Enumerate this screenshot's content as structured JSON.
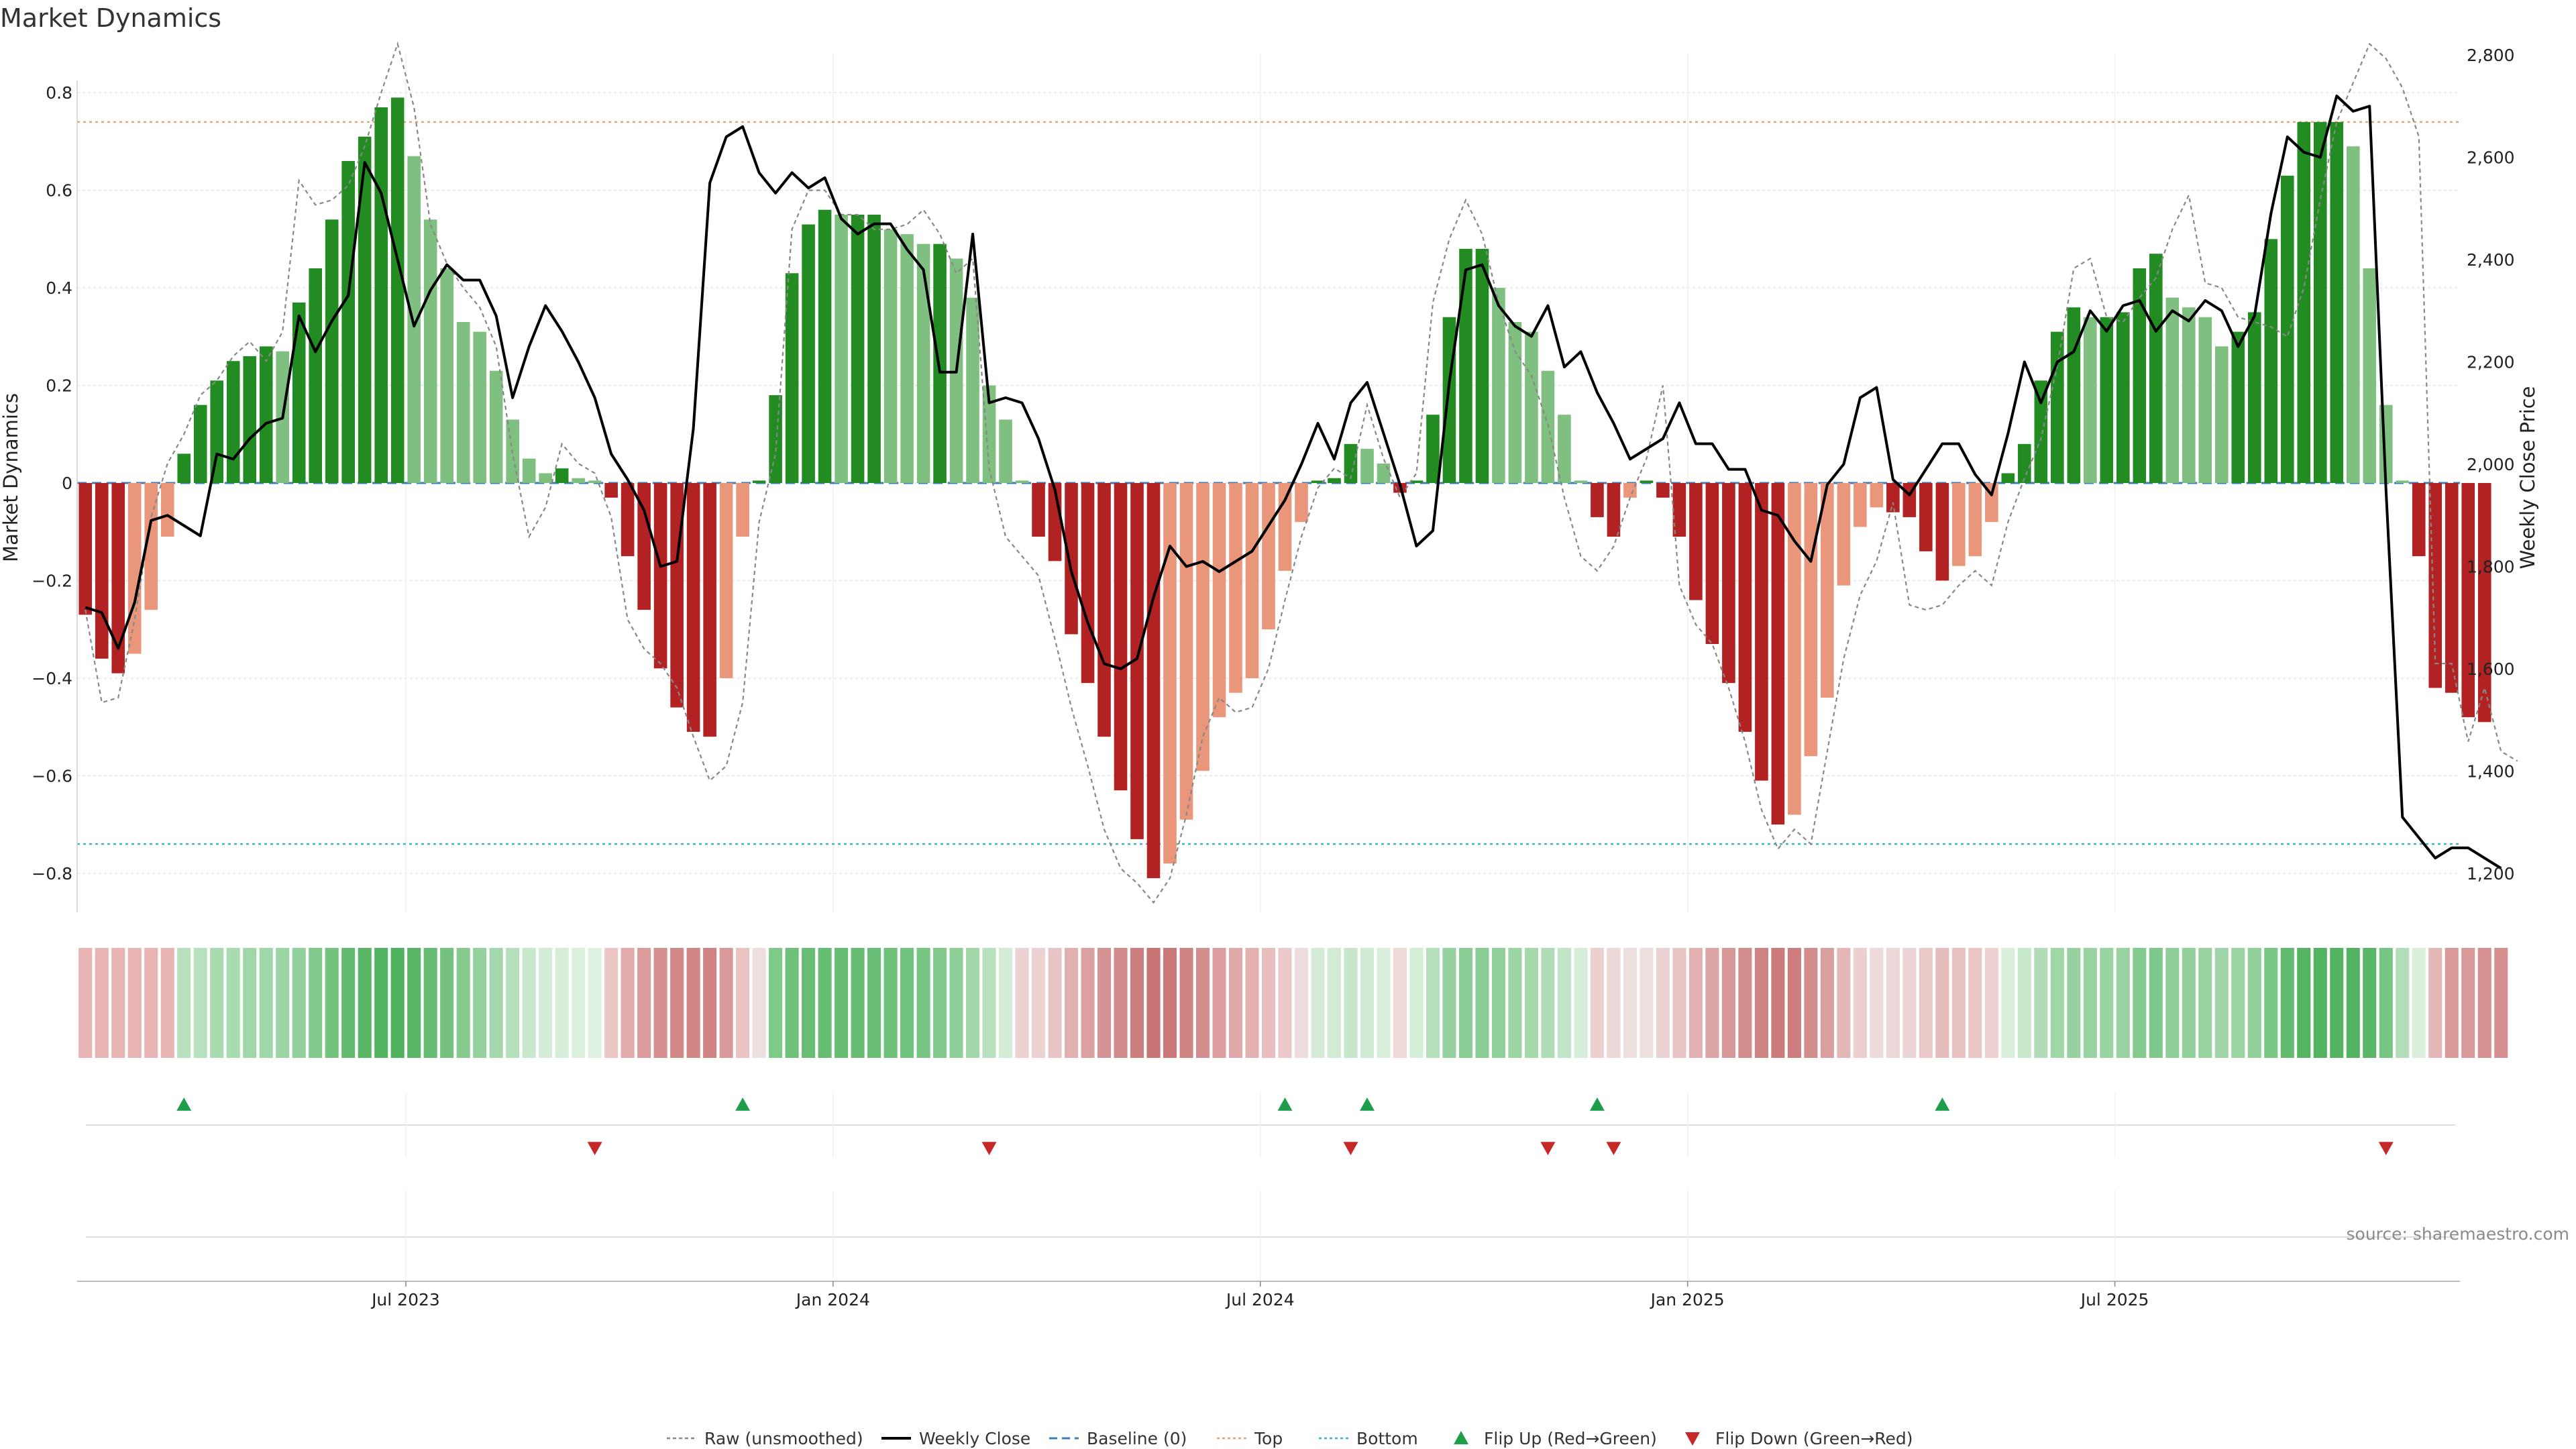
{
  "chart_data": {
    "type": "bar",
    "title": "Market Dynamics",
    "ylabel_left": "Market Dynamics",
    "ylabel_right": "Weekly Close Price",
    "source": "source: sharemaestro.com",
    "ylim_left": [
      -0.88,
      0.88
    ],
    "ylim_right": [
      1200,
      2800
    ],
    "yticks_left": [
      -0.8,
      -0.6,
      -0.4,
      -0.2,
      0,
      0.2,
      0.4,
      0.6,
      0.8
    ],
    "yticks_left_labels": [
      "−0.8",
      "−0.6",
      "−0.4",
      "−0.2",
      "0",
      "0.2",
      "0.4",
      "0.6",
      "0.8"
    ],
    "yticks_right": [
      1200,
      1400,
      1600,
      1800,
      2000,
      2200,
      2400,
      2600,
      2800
    ],
    "yticks_right_labels": [
      "1,200",
      "1,400",
      "1,600",
      "1,800",
      "2,000",
      "2,200",
      "2,400",
      "2,600",
      "2,800"
    ],
    "top_threshold": 0.74,
    "bottom_threshold": -0.74,
    "baseline": 0,
    "start_date": "2023-01-02",
    "weeks": 145,
    "xticks": [
      {
        "label": "Jul 2023",
        "week": 20
      },
      {
        "label": "Jan 2024",
        "week": 46
      },
      {
        "label": "Jul 2024",
        "week": 72
      },
      {
        "label": "Jan 2025",
        "week": 98
      },
      {
        "label": "Jul 2025",
        "week": 124
      }
    ],
    "bar_colors": {
      "strong_green": "#228b22",
      "light_green": "#7fbf7f",
      "strong_red": "#b22222",
      "light_red": "#e9967a",
      "line": "#000000",
      "raw": "#888888",
      "baseline": "#3b7bbf",
      "top": "#e9a37a",
      "bottom": "#40b4c8",
      "flip_up": "#1e9e4a",
      "flip_down": "#c62828"
    },
    "series": [
      {
        "name": "Market Dynamics",
        "values": [
          -0.27,
          -0.36,
          -0.39,
          -0.35,
          -0.26,
          -0.11,
          0.06,
          0.16,
          0.21,
          0.25,
          0.26,
          0.28,
          0.27,
          0.37,
          0.44,
          0.54,
          0.66,
          0.71,
          0.77,
          0.79,
          0.67,
          0.54,
          0.44,
          0.33,
          0.31,
          0.23,
          0.13,
          0.05,
          0.02,
          0.03,
          0.01,
          0.005,
          -0.03,
          -0.15,
          -0.26,
          -0.38,
          -0.46,
          -0.51,
          -0.52,
          -0.4,
          -0.11,
          0.005,
          0.18,
          0.43,
          0.53,
          0.56,
          0.55,
          0.55,
          0.55,
          0.52,
          0.51,
          0.49,
          0.49,
          0.46,
          0.38,
          0.2,
          0.13,
          0.005,
          -0.11,
          -0.16,
          -0.31,
          -0.41,
          -0.52,
          -0.63,
          -0.73,
          -0.81,
          -0.78,
          -0.69,
          -0.59,
          -0.48,
          -0.43,
          -0.4,
          -0.3,
          -0.18,
          -0.08,
          0.005,
          0.01,
          0.08,
          0.07,
          0.04,
          -0.02,
          0.005,
          0.14,
          0.34,
          0.48,
          0.48,
          0.4,
          0.33,
          0.31,
          0.23,
          0.14,
          0.005,
          -0.07,
          -0.11,
          -0.03,
          0.005,
          -0.03,
          -0.11,
          -0.24,
          -0.33,
          -0.41,
          -0.51,
          -0.61,
          -0.7,
          -0.68,
          -0.56,
          -0.44,
          -0.21,
          -0.09,
          -0.05,
          -0.06,
          -0.07,
          -0.14,
          -0.2,
          -0.17,
          -0.15,
          -0.08,
          0.02,
          0.08,
          0.21,
          0.31,
          0.36,
          0.34,
          0.34,
          0.35,
          0.44,
          0.47,
          0.38,
          0.36,
          0.34,
          0.28,
          0.31,
          0.35,
          0.5,
          0.63,
          0.74,
          0.74,
          0.74,
          0.69,
          0.44,
          0.16,
          0.005,
          -0.15,
          -0.42,
          -0.43,
          -0.48,
          -0.49
        ]
      },
      {
        "name": "Weekly Close",
        "values": [
          1720,
          1710,
          1640,
          1730,
          1890,
          1900,
          1880,
          1860,
          2020,
          2010,
          2050,
          2080,
          2090,
          2290,
          2220,
          2280,
          2330,
          2590,
          2530,
          2400,
          2270,
          2340,
          2390,
          2360,
          2360,
          2290,
          2130,
          2230,
          2310,
          2260,
          2200,
          2130,
          2020,
          1970,
          1910,
          1800,
          1810,
          2070,
          2550,
          2640,
          2660,
          2570,
          2530,
          2570,
          2540,
          2560,
          2480,
          2450,
          2470,
          2470,
          2420,
          2380,
          2180,
          2180,
          2450,
          2120,
          2130,
          2120,
          2050,
          1950,
          1790,
          1690,
          1610,
          1600,
          1620,
          1740,
          1840,
          1800,
          1810,
          1790,
          1810,
          1830,
          1880,
          1930,
          2000,
          2080,
          2010,
          2120,
          2160,
          2060,
          1960,
          1840,
          1870,
          2160,
          2380,
          2390,
          2310,
          2270,
          2250,
          2310,
          2190,
          2220,
          2140,
          2080,
          2010,
          2030,
          2050,
          2120,
          2040,
          2040,
          1990,
          1990,
          1910,
          1900,
          1850,
          1810,
          1960,
          2000,
          2130,
          2150,
          1970,
          1940,
          1990,
          2040,
          2040,
          1980,
          1940,
          2060,
          2200,
          2120,
          2200,
          2220,
          2300,
          2260,
          2310,
          2320,
          2260,
          2300,
          2280,
          2320,
          2300,
          2230,
          2290,
          2490,
          2640,
          2610,
          2600,
          2720,
          2690,
          2700,
          1950,
          1310,
          1270,
          1230,
          1250,
          1250,
          1230,
          1210
        ]
      },
      {
        "name": "Raw (unsmoothed)",
        "values": [
          -0.26,
          -0.45,
          -0.44,
          -0.28,
          -0.07,
          0.04,
          0.1,
          0.18,
          0.21,
          0.26,
          0.29,
          0.25,
          0.31,
          0.62,
          0.57,
          0.58,
          0.61,
          0.69,
          0.8,
          0.9,
          0.77,
          0.53,
          0.45,
          0.4,
          0.36,
          0.28,
          0.06,
          -0.11,
          -0.05,
          0.08,
          0.04,
          0.02,
          -0.07,
          -0.28,
          -0.34,
          -0.37,
          -0.42,
          -0.52,
          -0.61,
          -0.58,
          -0.45,
          -0.08,
          0.06,
          0.52,
          0.6,
          0.6,
          0.55,
          0.55,
          0.52,
          0.52,
          0.53,
          0.56,
          0.51,
          0.43,
          0.46,
          0.03,
          -0.11,
          -0.15,
          -0.19,
          -0.32,
          -0.46,
          -0.58,
          -0.71,
          -0.79,
          -0.82,
          -0.86,
          -0.81,
          -0.68,
          -0.52,
          -0.44,
          -0.47,
          -0.46,
          -0.38,
          -0.24,
          -0.11,
          -0.01,
          0.03,
          0.01,
          0.16,
          0.05,
          -0.03,
          0.02,
          0.37,
          0.5,
          0.58,
          0.51,
          0.37,
          0.27,
          0.22,
          0.12,
          -0.03,
          -0.15,
          -0.18,
          -0.13,
          -0.03,
          0.05,
          0.2,
          -0.21,
          -0.29,
          -0.33,
          -0.42,
          -0.53,
          -0.67,
          -0.75,
          -0.71,
          -0.74,
          -0.55,
          -0.36,
          -0.23,
          -0.16,
          -0.04,
          -0.25,
          -0.26,
          -0.25,
          -0.21,
          -0.18,
          -0.21,
          -0.08,
          0.01,
          0.09,
          0.24,
          0.44,
          0.46,
          0.34,
          0.33,
          0.38,
          0.42,
          0.52,
          0.59,
          0.41,
          0.4,
          0.34,
          0.33,
          0.32,
          0.3,
          0.4,
          0.58,
          0.74,
          0.82,
          0.9,
          0.87,
          0.81,
          0.71,
          -0.37,
          -0.37,
          -0.53,
          -0.42,
          -0.55,
          -0.57
        ]
      }
    ],
    "heat_strip": {
      "label": "Market Dynamics heat strip",
      "colors": [
        "#e8b3b3",
        "#e8b3b3",
        "#e8b3b3",
        "#e8b3b3",
        "#e8b3b3",
        "#e8b3b3",
        "#b7e1bd",
        "#b7e1bd",
        "#a9dbb1",
        "#a9dbb1",
        "#a0d7a8",
        "#a0d7a8",
        "#9bd5a3",
        "#93d19c",
        "#82c98c",
        "#73c27e",
        "#63bb70",
        "#58b666",
        "#52b360",
        "#4fb25d",
        "#57b565",
        "#64bb71",
        "#75c280",
        "#86ca90",
        "#94d19d",
        "#a4d8ac",
        "#b6e0bc",
        "#c8e8cc",
        "#d2ecd5",
        "#d6eed9",
        "#dbf0dd",
        "#dff1e1",
        "#ecc5c5",
        "#e2aaaa",
        "#dc9c9c",
        "#d68f8f",
        "#d38888",
        "#d18585",
        "#d08383",
        "#d99999",
        "#e9c2c2",
        "#eedfdf",
        "#7ccb89",
        "#6dc179",
        "#68be74",
        "#66bd72",
        "#66bd72",
        "#66bd72",
        "#68be74",
        "#6dc179",
        "#72c37d",
        "#78c683",
        "#80c98a",
        "#8ecf97",
        "#a1d7a9",
        "#b8e1be",
        "#d3ecd6",
        "#ecd2d2",
        "#ecd2d2",
        "#e9c4c4",
        "#e1b0b0",
        "#dba0a0",
        "#d69393",
        "#d28a8a",
        "#cd7f7f",
        "#c97474",
        "#cb7878",
        "#cf8282",
        "#d58e8e",
        "#dc9e9e",
        "#e1aaaa",
        "#e4b1b1",
        "#e8bdbd",
        "#ecc8c8",
        "#eedddd",
        "#d4ecd7",
        "#d1ebd4",
        "#c6e7ca",
        "#cfebd3",
        "#d8efdb",
        "#eed8d8",
        "#d3edd6",
        "#b3dfb9",
        "#96d29f",
        "#8acd94",
        "#8acd94",
        "#91d09a",
        "#9bd5a3",
        "#a3d8aa",
        "#b0dcb6",
        "#c1e5c6",
        "#d6eed9",
        "#ecd0d0",
        "#edd7d7",
        "#eedfdf",
        "#eedfdf",
        "#ecd3d3",
        "#e8c3c3",
        "#e2b1b1",
        "#dca4a4",
        "#d79898",
        "#d38c8c",
        "#cf8282",
        "#cc7b7b",
        "#cd7d7d",
        "#d48d8d",
        "#daa0a0",
        "#e5b8b8",
        "#ecd0d0",
        "#eedada",
        "#edd7d7",
        "#edd4d4",
        "#eac8c8",
        "#e6bdbd",
        "#e8c1c1",
        "#eac6c6",
        "#ecd1d1",
        "#d8efdb",
        "#c8e8cc",
        "#b1dcb7",
        "#9fd7a7",
        "#96d29f",
        "#98d3a1",
        "#98d3a1",
        "#97d2a0",
        "#84c98e",
        "#7ec78a",
        "#90cf99",
        "#93d19c",
        "#97d2a0",
        "#9fd5a6",
        "#9ad4a2",
        "#92d09b",
        "#79c784",
        "#63bb70",
        "#54b462",
        "#52b360",
        "#52b360",
        "#52b360",
        "#58b666",
        "#77c582",
        "#b2ddb8",
        "#d9efdc",
        "#e5b8b8",
        "#d99999",
        "#d99999",
        "#d69292",
        "#d69090"
      ]
    },
    "flips": {
      "up": [
        6,
        40,
        73,
        78,
        92,
        113
      ],
      "down": [
        31,
        55,
        77,
        89,
        93,
        140
      ]
    },
    "legend": [
      {
        "key": "raw",
        "label": "Raw (unsmoothed)"
      },
      {
        "key": "close",
        "label": "Weekly Close"
      },
      {
        "key": "baseline",
        "label": "Baseline (0)"
      },
      {
        "key": "top",
        "label": "Top"
      },
      {
        "key": "bottom",
        "label": "Bottom"
      },
      {
        "key": "flip_up",
        "label": "Flip Up (Red→Green)"
      },
      {
        "key": "flip_down",
        "label": "Flip Down (Green→Red)"
      }
    ]
  }
}
